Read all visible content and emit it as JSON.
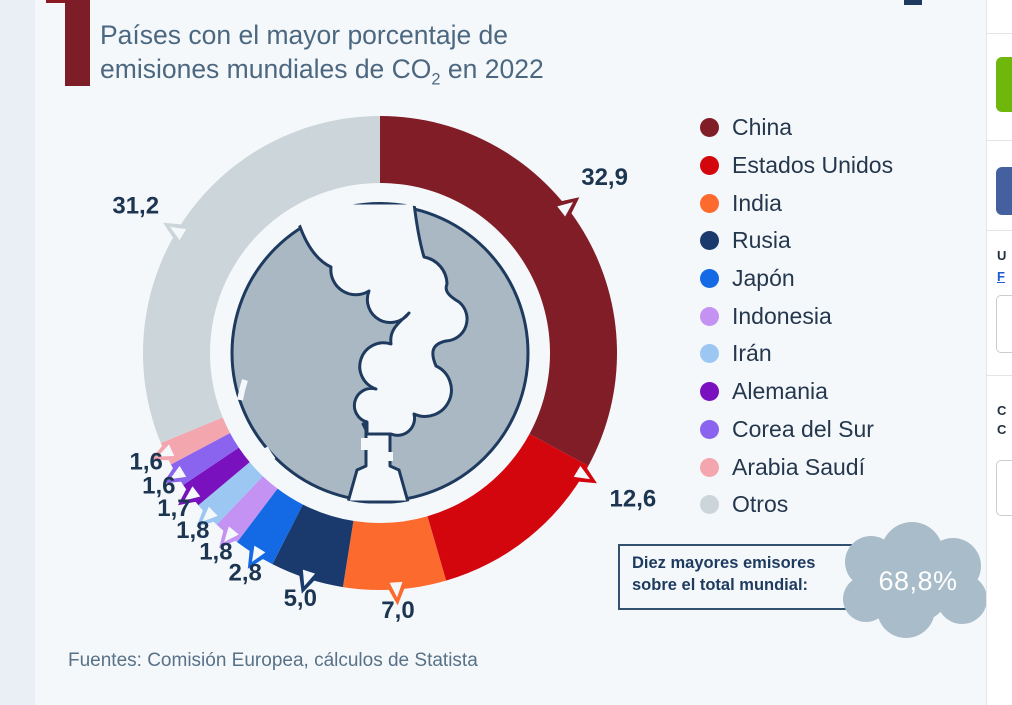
{
  "page": {
    "title_line1": "Países con el mayor porcentaje de",
    "title_line2_pre": "emisiones mundiales de CO",
    "title_line2_sub": "2",
    "title_line2_post": " en 2022",
    "source": "Fuentes: Comisión Europea, cálculos de Statista"
  },
  "chart_data": {
    "type": "pie",
    "subtype": "donut",
    "unit": "%",
    "title": "Países con el mayor porcentaje de emisiones mundiales de CO2 en 2022",
    "legend_position": "right",
    "series": [
      {
        "label": "China",
        "value": 32.9,
        "display": "32,9",
        "color": "#811d27"
      },
      {
        "label": "Estados Unidos",
        "value": 12.6,
        "display": "12,6",
        "color": "#d3060e"
      },
      {
        "label": "India",
        "value": 7.0,
        "display": "7,0",
        "color": "#fd6a2e"
      },
      {
        "label": "Rusia",
        "value": 5.0,
        "display": "5,0",
        "color": "#1a3a6d"
      },
      {
        "label": "Japón",
        "value": 2.8,
        "display": "2,8",
        "color": "#146ae4"
      },
      {
        "label": "Indonesia",
        "value": 1.8,
        "display": "1,8",
        "color": "#c392f2"
      },
      {
        "label": "Irán",
        "value": 1.8,
        "display": "1,8",
        "color": "#9cc7f3"
      },
      {
        "label": "Alemania",
        "value": 1.7,
        "display": "1,7",
        "color": "#7911bf"
      },
      {
        "label": "Corea del Sur",
        "value": 1.6,
        "display": "1,6",
        "color": "#8a63ee"
      },
      {
        "label": "Arabia Saudí",
        "value": 1.6,
        "display": "1,6",
        "color": "#f3a6ae"
      },
      {
        "label": "Otros",
        "value": 31.2,
        "display": "31,2",
        "color": "#cbd5da"
      }
    ],
    "annotation": {
      "line1": "Diez mayores emisores",
      "line2": "sobre el total mundial:",
      "value": "68,8%"
    },
    "source": "Fuentes: Comisión Europea, cálculos de Statista"
  },
  "right_panel": {
    "fragment_top": "U",
    "fragment_link": "F",
    "fragment_mid1": "C",
    "fragment_mid2": "C"
  },
  "colors": {
    "accent_bar": "#7c1d28",
    "card_bg": "#f5f8fb",
    "page_bg": "#e9eff5",
    "cloud": "#a9bcc9",
    "annotation_border": "#33516f",
    "label_text": "#1c3550",
    "center_globe": "#a9b8c3",
    "outline_navy": "#1e3a5f"
  }
}
